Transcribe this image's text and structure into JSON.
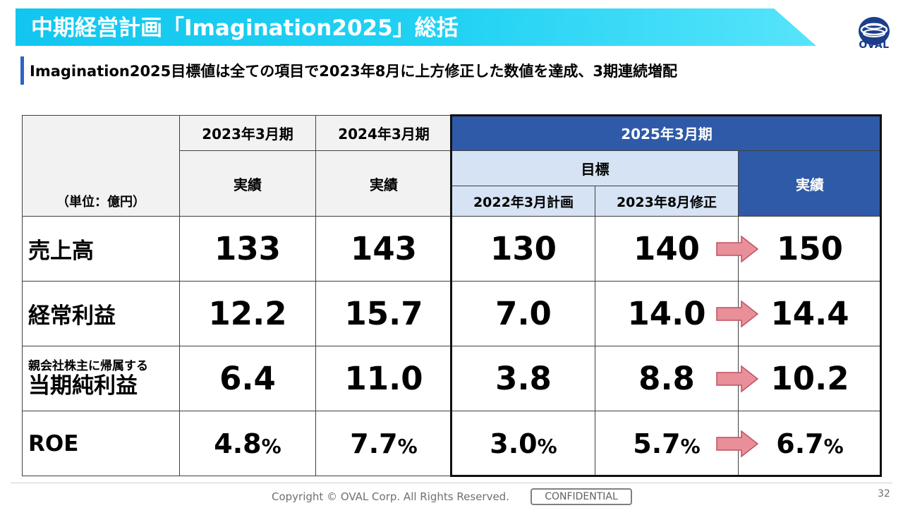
{
  "slide": {
    "title": "中期経営計画「Imagination2025」総括",
    "subtitle": "Imagination2025目標値は全ての項目で2023年8月に上方修正した数値を達成、3期連続増配",
    "logo_text": "OVAL",
    "copyright": "Copyright © OVAL Corp. All Rights Reserved.",
    "confidential": "CONFIDENTIAL",
    "page_number": "32"
  },
  "table": {
    "unit_label": "（単位：億円）",
    "headers": {
      "fy2023": "2023年3月期",
      "fy2024": "2024年3月期",
      "fy2025": "2025年3月期",
      "actual": "実績",
      "target": "目標",
      "plan_2022": "2022年3月計画",
      "revised_2023": "2023年8月修正"
    },
    "rows": [
      {
        "label": "売上高",
        "fy2023": "133",
        "fy2024": "143",
        "plan": "130",
        "revised": "140",
        "actual2025": "150"
      },
      {
        "label": "経常利益",
        "fy2023": "12.2",
        "fy2024": "15.7",
        "plan": "7.0",
        "revised": "14.0",
        "actual2025": "14.4"
      },
      {
        "label_small": "親会社株主に帰属する",
        "label": "当期純利益",
        "fy2023": "6.4",
        "fy2024": "11.0",
        "plan": "3.8",
        "revised": "8.8",
        "actual2025": "10.2"
      },
      {
        "label": "ROE",
        "fy2023": "4.8",
        "fy2024": "7.7",
        "plan": "3.0",
        "revised": "5.7",
        "actual2025": "6.7",
        "unit": "%"
      }
    ]
  },
  "colors": {
    "title_band": "#12c6ef",
    "header_blue": "#2e5aa7",
    "header_light": "#d6e3f4",
    "header_gray": "#f2f2f2",
    "arrow_fill": "#e88f9a",
    "arrow_stroke": "#c0505f"
  }
}
